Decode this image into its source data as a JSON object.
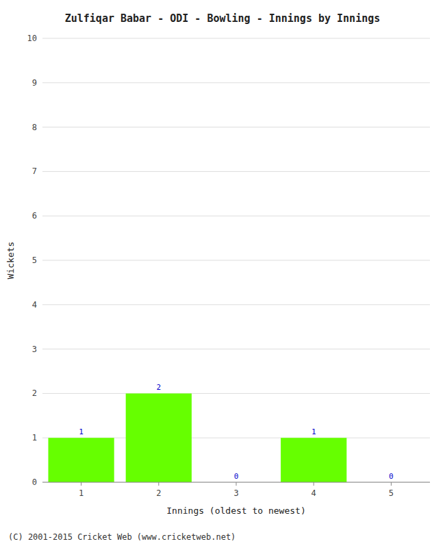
{
  "chart_data": {
    "type": "bar",
    "title": "Zulfiqar Babar - ODI - Bowling - Innings by Innings",
    "xlabel": "Innings (oldest to newest)",
    "ylabel": "Wickets",
    "categories": [
      "1",
      "2",
      "3",
      "4",
      "5"
    ],
    "values": [
      1,
      2,
      0,
      1,
      0
    ],
    "color": "#66ff00",
    "ylim": [
      0,
      10
    ],
    "yticks": [
      0,
      1,
      2,
      3,
      4,
      5,
      6,
      7,
      8,
      9,
      10
    ],
    "grid": true,
    "data_labels": true,
    "footer": "(C) 2001-2015 Cricket Web (www.cricketweb.net)"
  }
}
